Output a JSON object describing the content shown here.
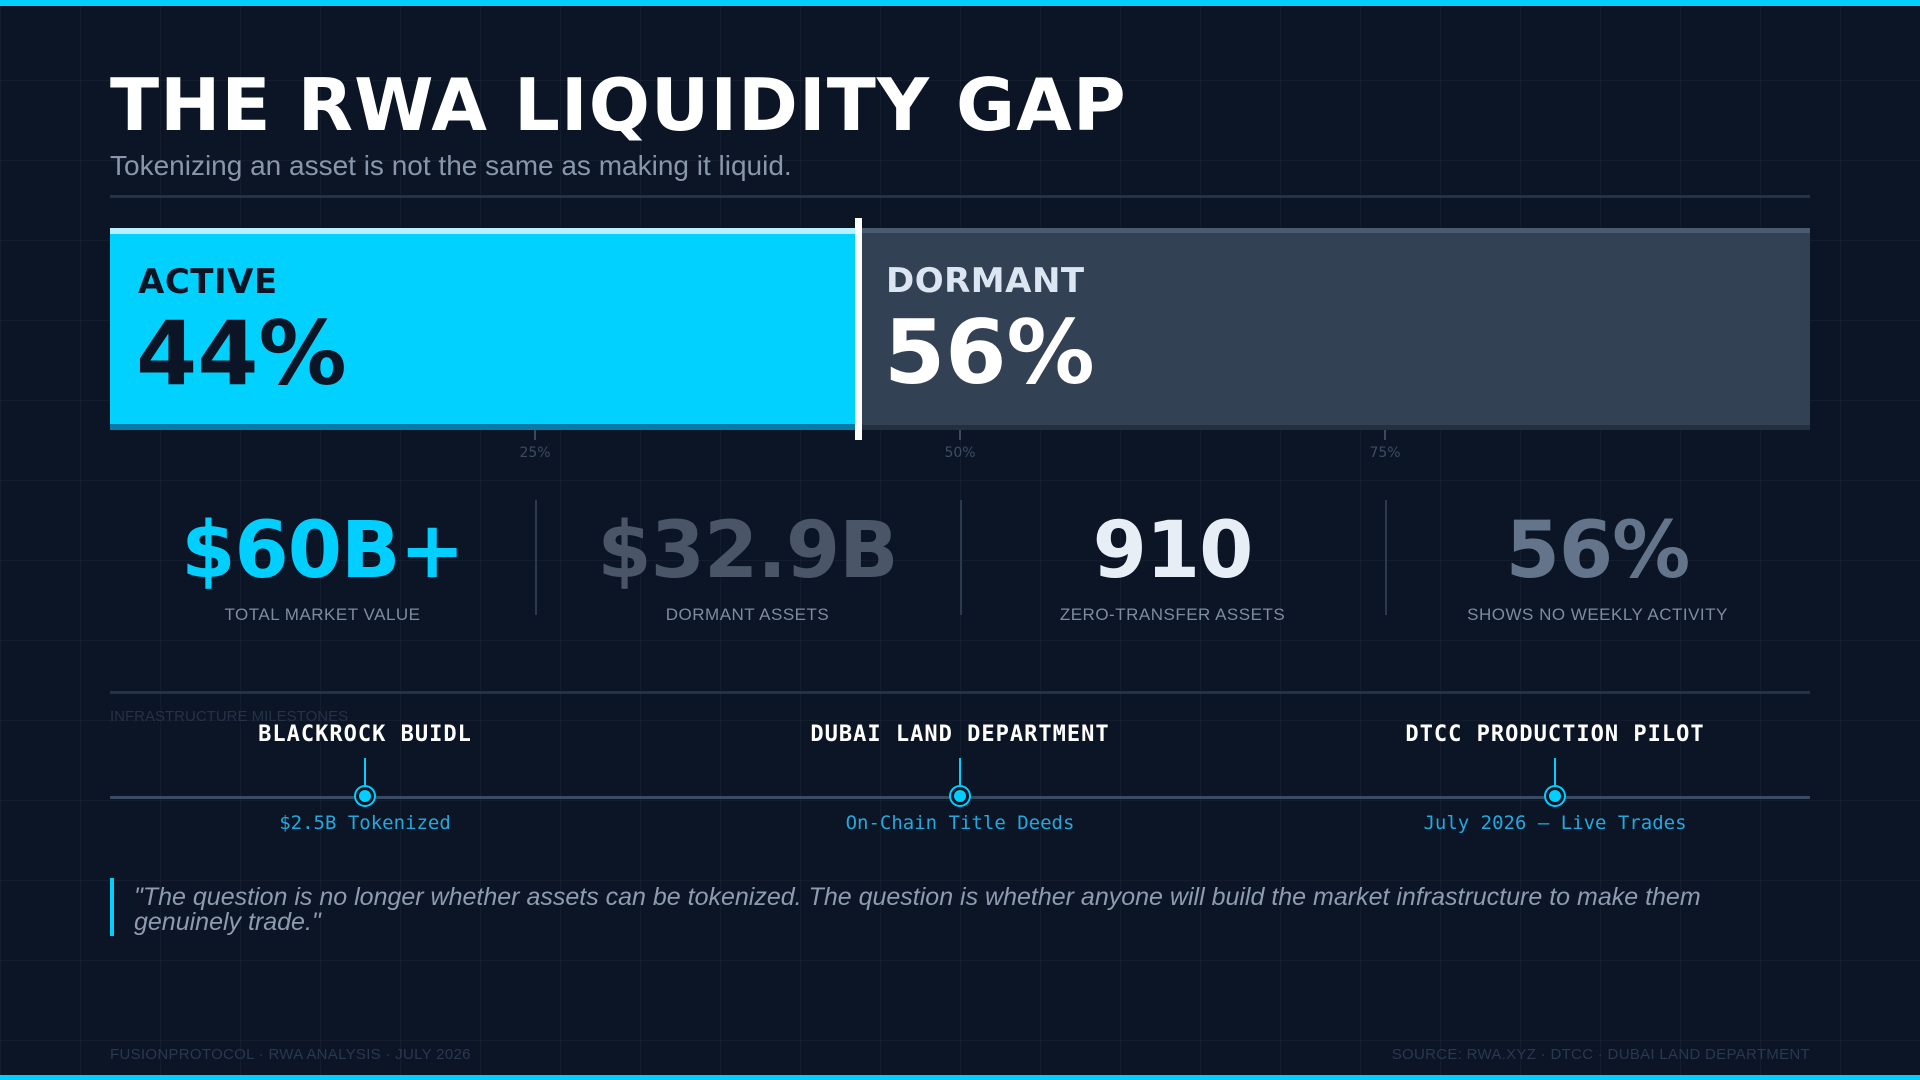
{
  "header": {
    "title": "THE RWA LIQUIDITY GAP",
    "subtitle": "Tokenizing an asset is not the same as making it liquid."
  },
  "chart_data": {
    "type": "bar",
    "orientation": "horizontal-stacked",
    "xlim": [
      0,
      100
    ],
    "ticks": [
      {
        "value": 25,
        "label": "25%"
      },
      {
        "value": 50,
        "label": "50%"
      },
      {
        "value": 75,
        "label": "75%"
      }
    ],
    "segments": [
      {
        "key": "active",
        "label": "ACTIVE",
        "value": 44,
        "value_text": "44%",
        "color": "#00d1ff"
      },
      {
        "key": "dormant",
        "label": "DORMANT",
        "value": 56,
        "value_text": "56%",
        "color": "#334155"
      }
    ]
  },
  "stats": [
    {
      "value": "$60B+",
      "label": "TOTAL MARKET VALUE",
      "color": "#00cfff"
    },
    {
      "value": "$32.9B",
      "label": "DORMANT ASSETS",
      "color": "#4a5568"
    },
    {
      "value": "910",
      "label": "ZERO-TRANSFER ASSETS",
      "color": "#e8eef6"
    },
    {
      "value": "56%",
      "label": "SHOWS NO WEEKLY ACTIVITY",
      "color": "#64748b"
    }
  ],
  "milestones": {
    "caption": "INFRASTRUCTURE MILESTONES",
    "items": [
      {
        "name": "BLACKROCK BUIDL",
        "detail": "$2.5B Tokenized"
      },
      {
        "name": "DUBAI LAND DEPARTMENT",
        "detail": "On-Chain Title Deeds"
      },
      {
        "name": "DTCC PRODUCTION PILOT",
        "detail": "July 2026 — Live Trades"
      }
    ]
  },
  "quote": "\"The question is no longer whether assets can be tokenized. The question is whether anyone will build the market infrastructure to make them genuinely trade.\"",
  "footer": {
    "left": "FUSIONPROTOCOL · RWA ANALYSIS · JULY 2026",
    "right": "SOURCE: RWA.XYZ · DTCC · DUBAI LAND DEPARTMENT"
  },
  "colors": {
    "accent": "#00cfff",
    "background": "#0b1526",
    "dormant": "#334155"
  }
}
